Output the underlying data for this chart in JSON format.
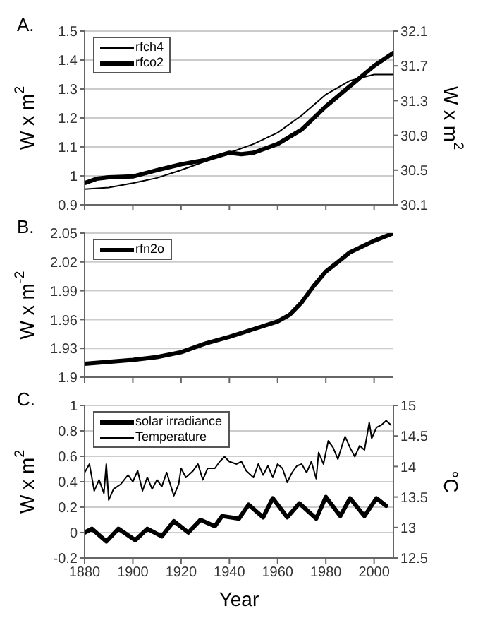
{
  "chart_data": [
    {
      "type": "line",
      "annotations": [
        "A."
      ],
      "ylabel": "W x m$^{2}$",
      "y2label": "W x m$^{2}$",
      "xlim": [
        1880,
        2008
      ],
      "xticks": [
        {
          "value": 1880,
          "label": null
        },
        {
          "value": 1900,
          "label": null
        },
        {
          "value": 1920,
          "label": null
        },
        {
          "value": 1940,
          "label": null
        },
        {
          "value": 1960,
          "label": null
        },
        {
          "value": 1980,
          "label": null
        },
        {
          "value": 2000,
          "label": null
        }
      ],
      "ylim": [
        0.9,
        1.5
      ],
      "yticks": [
        0.9,
        1,
        1.1,
        1.2,
        1.3,
        1.4,
        1.5
      ],
      "y2lim": [
        30.1,
        32.1
      ],
      "y2ticks": [
        30.1,
        30.5,
        30.9,
        31.3,
        31.7,
        32.1
      ],
      "grid": "y",
      "legend": "top left",
      "tick_labels": "y",
      "series": [
        {
          "name": "rfch4",
          "color": "#000000",
          "axis": "y2",
          "x": [
            1880,
            1890,
            1900,
            1910,
            1920,
            1930,
            1940,
            1950,
            1960,
            1970,
            1980,
            1990,
            2000,
            2008
          ],
          "values": [
            30.28,
            30.3,
            30.35,
            30.41,
            30.5,
            30.6,
            30.7,
            30.8,
            30.93,
            31.13,
            31.37,
            31.53,
            31.6,
            31.6
          ]
        },
        {
          "name": "rfco2",
          "color": "#000000",
          "axis": "y",
          "x": [
            1880,
            1885,
            1890,
            1900,
            1910,
            1920,
            1930,
            1940,
            1945,
            1950,
            1960,
            1970,
            1980,
            1990,
            2000,
            2008
          ],
          "values": [
            0.975,
            0.99,
            0.995,
            0.998,
            1.02,
            1.04,
            1.055,
            1.08,
            1.075,
            1.08,
            1.11,
            1.16,
            1.24,
            1.31,
            1.38,
            1.425
          ]
        }
      ]
    },
    {
      "type": "line",
      "annotations": [
        "B."
      ],
      "ylabel": "W x m$^{-2}$",
      "xlim": [
        1880,
        2008
      ],
      "xticks": [
        {
          "value": 1880,
          "label": null
        },
        {
          "value": 1900,
          "label": null
        },
        {
          "value": 1920,
          "label": null
        },
        {
          "value": 1940,
          "label": null
        },
        {
          "value": 1960,
          "label": null
        },
        {
          "value": 1980,
          "label": null
        },
        {
          "value": 2000,
          "label": null
        }
      ],
      "ylim": [
        1.9,
        2.05
      ],
      "yticks": [
        1.9,
        1.93,
        1.96,
        1.99,
        2.02,
        2.05
      ],
      "grid": "y",
      "legend": "top left",
      "tick_labels": "y",
      "series": [
        {
          "name": "rfn2o",
          "color": "#000000",
          "axis": "y",
          "x": [
            1880,
            1890,
            1900,
            1910,
            1920,
            1930,
            1940,
            1950,
            1960,
            1965,
            1970,
            1975,
            1980,
            1985,
            1990,
            2000,
            2008
          ],
          "values": [
            1.914,
            1.916,
            1.918,
            1.921,
            1.926,
            1.935,
            1.942,
            1.95,
            1.958,
            1.965,
            1.978,
            1.995,
            2.01,
            2.02,
            2.03,
            2.042,
            2.05
          ]
        }
      ]
    },
    {
      "type": "line",
      "annotations": [
        "C."
      ],
      "xlabel": "Year",
      "ylabel": "W x m$^{2}$",
      "y2label": "°C",
      "xlim": [
        1880,
        2008
      ],
      "xticks": [
        1880,
        1900,
        1920,
        1940,
        1960,
        1980,
        2000
      ],
      "ylim": [
        -0.2,
        1
      ],
      "yticks": [
        -0.2,
        0,
        0.2,
        0.4,
        0.6,
        0.8,
        1
      ],
      "y2lim": [
        12.5,
        15
      ],
      "y2ticks": [
        12.5,
        13,
        13.5,
        14,
        14.5,
        15
      ],
      "grid": "y",
      "legend": "top left",
      "series": [
        {
          "name": "solar irradiance",
          "color": "#000000",
          "axis": "y",
          "x": [
            1880,
            1883,
            1889,
            1894,
            1901,
            1906,
            1912,
            1917,
            1923,
            1928,
            1934,
            1937,
            1944,
            1948,
            1954,
            1958,
            1964,
            1969,
            1976,
            1980,
            1986,
            1990,
            1996,
            2001,
            2005
          ],
          "values": [
            0,
            0.03,
            -0.07,
            0.03,
            -0.06,
            0.03,
            -0.03,
            0.09,
            0,
            0.1,
            0.05,
            0.13,
            0.11,
            0.22,
            0.12,
            0.27,
            0.12,
            0.23,
            0.11,
            0.28,
            0.13,
            0.27,
            0.13,
            0.27,
            0.21
          ]
        },
        {
          "name": "Temperature",
          "color": "#000000",
          "axis": "y2",
          "x": [
            1880,
            1882,
            1884,
            1886,
            1888,
            1889,
            1890,
            1892,
            1895,
            1898,
            1900,
            1902,
            1904,
            1906,
            1908,
            1910,
            1912,
            1914,
            1917,
            1919,
            1920,
            1922,
            1925,
            1927,
            1929,
            1931,
            1934,
            1936,
            1938,
            1940,
            1943,
            1945,
            1947,
            1950,
            1952,
            1954,
            1956,
            1958,
            1960,
            1962,
            1964,
            1966,
            1968,
            1970,
            1972,
            1974,
            1976,
            1977,
            1979,
            1981,
            1983,
            1985,
            1987,
            1988,
            1990,
            1992,
            1994,
            1996,
            1998,
            1999,
            2001,
            2003,
            2005,
            2007
          ],
          "values": [
            13.9,
            14.04,
            13.6,
            13.78,
            13.56,
            14.04,
            13.45,
            13.63,
            13.71,
            13.86,
            13.75,
            13.93,
            13.6,
            13.82,
            13.63,
            13.78,
            13.67,
            13.9,
            13.52,
            13.71,
            13.97,
            13.82,
            13.93,
            14.04,
            13.78,
            13.97,
            13.97,
            14.08,
            14.16,
            14.08,
            14.04,
            14.08,
            13.93,
            13.82,
            14.04,
            13.86,
            14.01,
            13.82,
            14.04,
            13.97,
            13.74,
            13.9,
            14.01,
            14.04,
            13.9,
            14.08,
            13.8,
            14.23,
            14.04,
            14.42,
            14.31,
            14.12,
            14.38,
            14.49,
            14.31,
            14.16,
            14.34,
            14.27,
            14.72,
            14.46,
            14.64,
            14.68,
            14.75,
            14.68
          ]
        }
      ]
    }
  ]
}
